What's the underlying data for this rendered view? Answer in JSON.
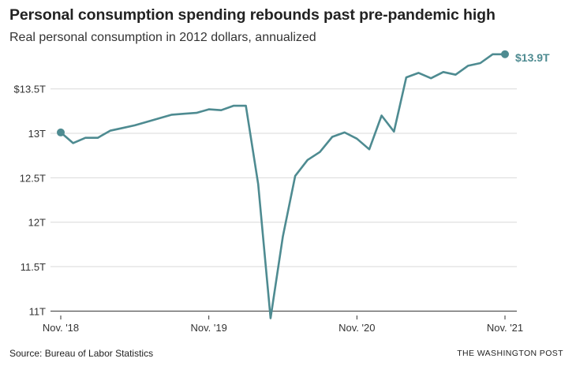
{
  "header": {
    "title": "Personal consumption spending rebounds past pre-pandemic high",
    "subtitle": "Real personal consumption in 2012 dollars, annualized"
  },
  "footer": {
    "source": "Source: Bureau of Labor Statistics",
    "credit": "THE WASHINGTON POST"
  },
  "colors": {
    "line": "#4e8b91",
    "grid": "#d9d9d9",
    "axis": "#333333",
    "label": "#4e8b91"
  },
  "chart_data": {
    "type": "line",
    "title": "Personal consumption spending rebounds past pre-pandemic high",
    "subtitle": "Real personal consumption in 2012 dollars, annualized",
    "xlabel": "",
    "ylabel": "",
    "unit": "trillions of 2012 dollars",
    "ylim": [
      10.95,
      13.95
    ],
    "grid": true,
    "x_ticks": [
      "Nov. '18",
      "Nov. '19",
      "Nov. '20",
      "Nov. '21"
    ],
    "y_ticks": [
      {
        "value": 11,
        "label": "11T"
      },
      {
        "value": 11.5,
        "label": "11.5T"
      },
      {
        "value": 12,
        "label": "12T"
      },
      {
        "value": 12.5,
        "label": "12.5T"
      },
      {
        "value": 13,
        "label": "13T"
      },
      {
        "value": 13.5,
        "label": "$13.5T"
      }
    ],
    "end_label": "$13.9T",
    "series": [
      {
        "x": [
          "Nov. '18",
          "Dec. '18",
          "Jan. '19",
          "Feb. '19",
          "Mar. '19",
          "Apr. '19",
          "May '19",
          "Jun. '19",
          "Jul. '19",
          "Aug. '19",
          "Sep. '19",
          "Oct. '19",
          "Nov. '19",
          "Dec. '19",
          "Jan. '20",
          "Feb. '20",
          "Mar. '20",
          "Apr. '20",
          "May '20",
          "Jun. '20",
          "Jul. '20",
          "Aug. '20",
          "Sep. '20",
          "Oct. '20",
          "Nov. '20",
          "Dec. '20",
          "Jan. '21",
          "Feb. '21",
          "Mar. '21",
          "Apr. '21",
          "May '21",
          "Jun. '21",
          "Jul. '21",
          "Aug. '21",
          "Sep. '21",
          "Oct. '21",
          "Nov. '21"
        ],
        "values": [
          13.01,
          12.89,
          12.95,
          12.95,
          13.03,
          13.06,
          13.09,
          13.13,
          13.17,
          13.21,
          13.22,
          13.23,
          13.27,
          13.26,
          13.31,
          13.31,
          12.43,
          10.92,
          11.84,
          12.52,
          12.7,
          12.79,
          12.96,
          13.01,
          12.94,
          12.82,
          13.2,
          13.02,
          13.63,
          13.68,
          13.62,
          13.69,
          13.66,
          13.76,
          13.79,
          13.89,
          13.89
        ]
      }
    ]
  }
}
